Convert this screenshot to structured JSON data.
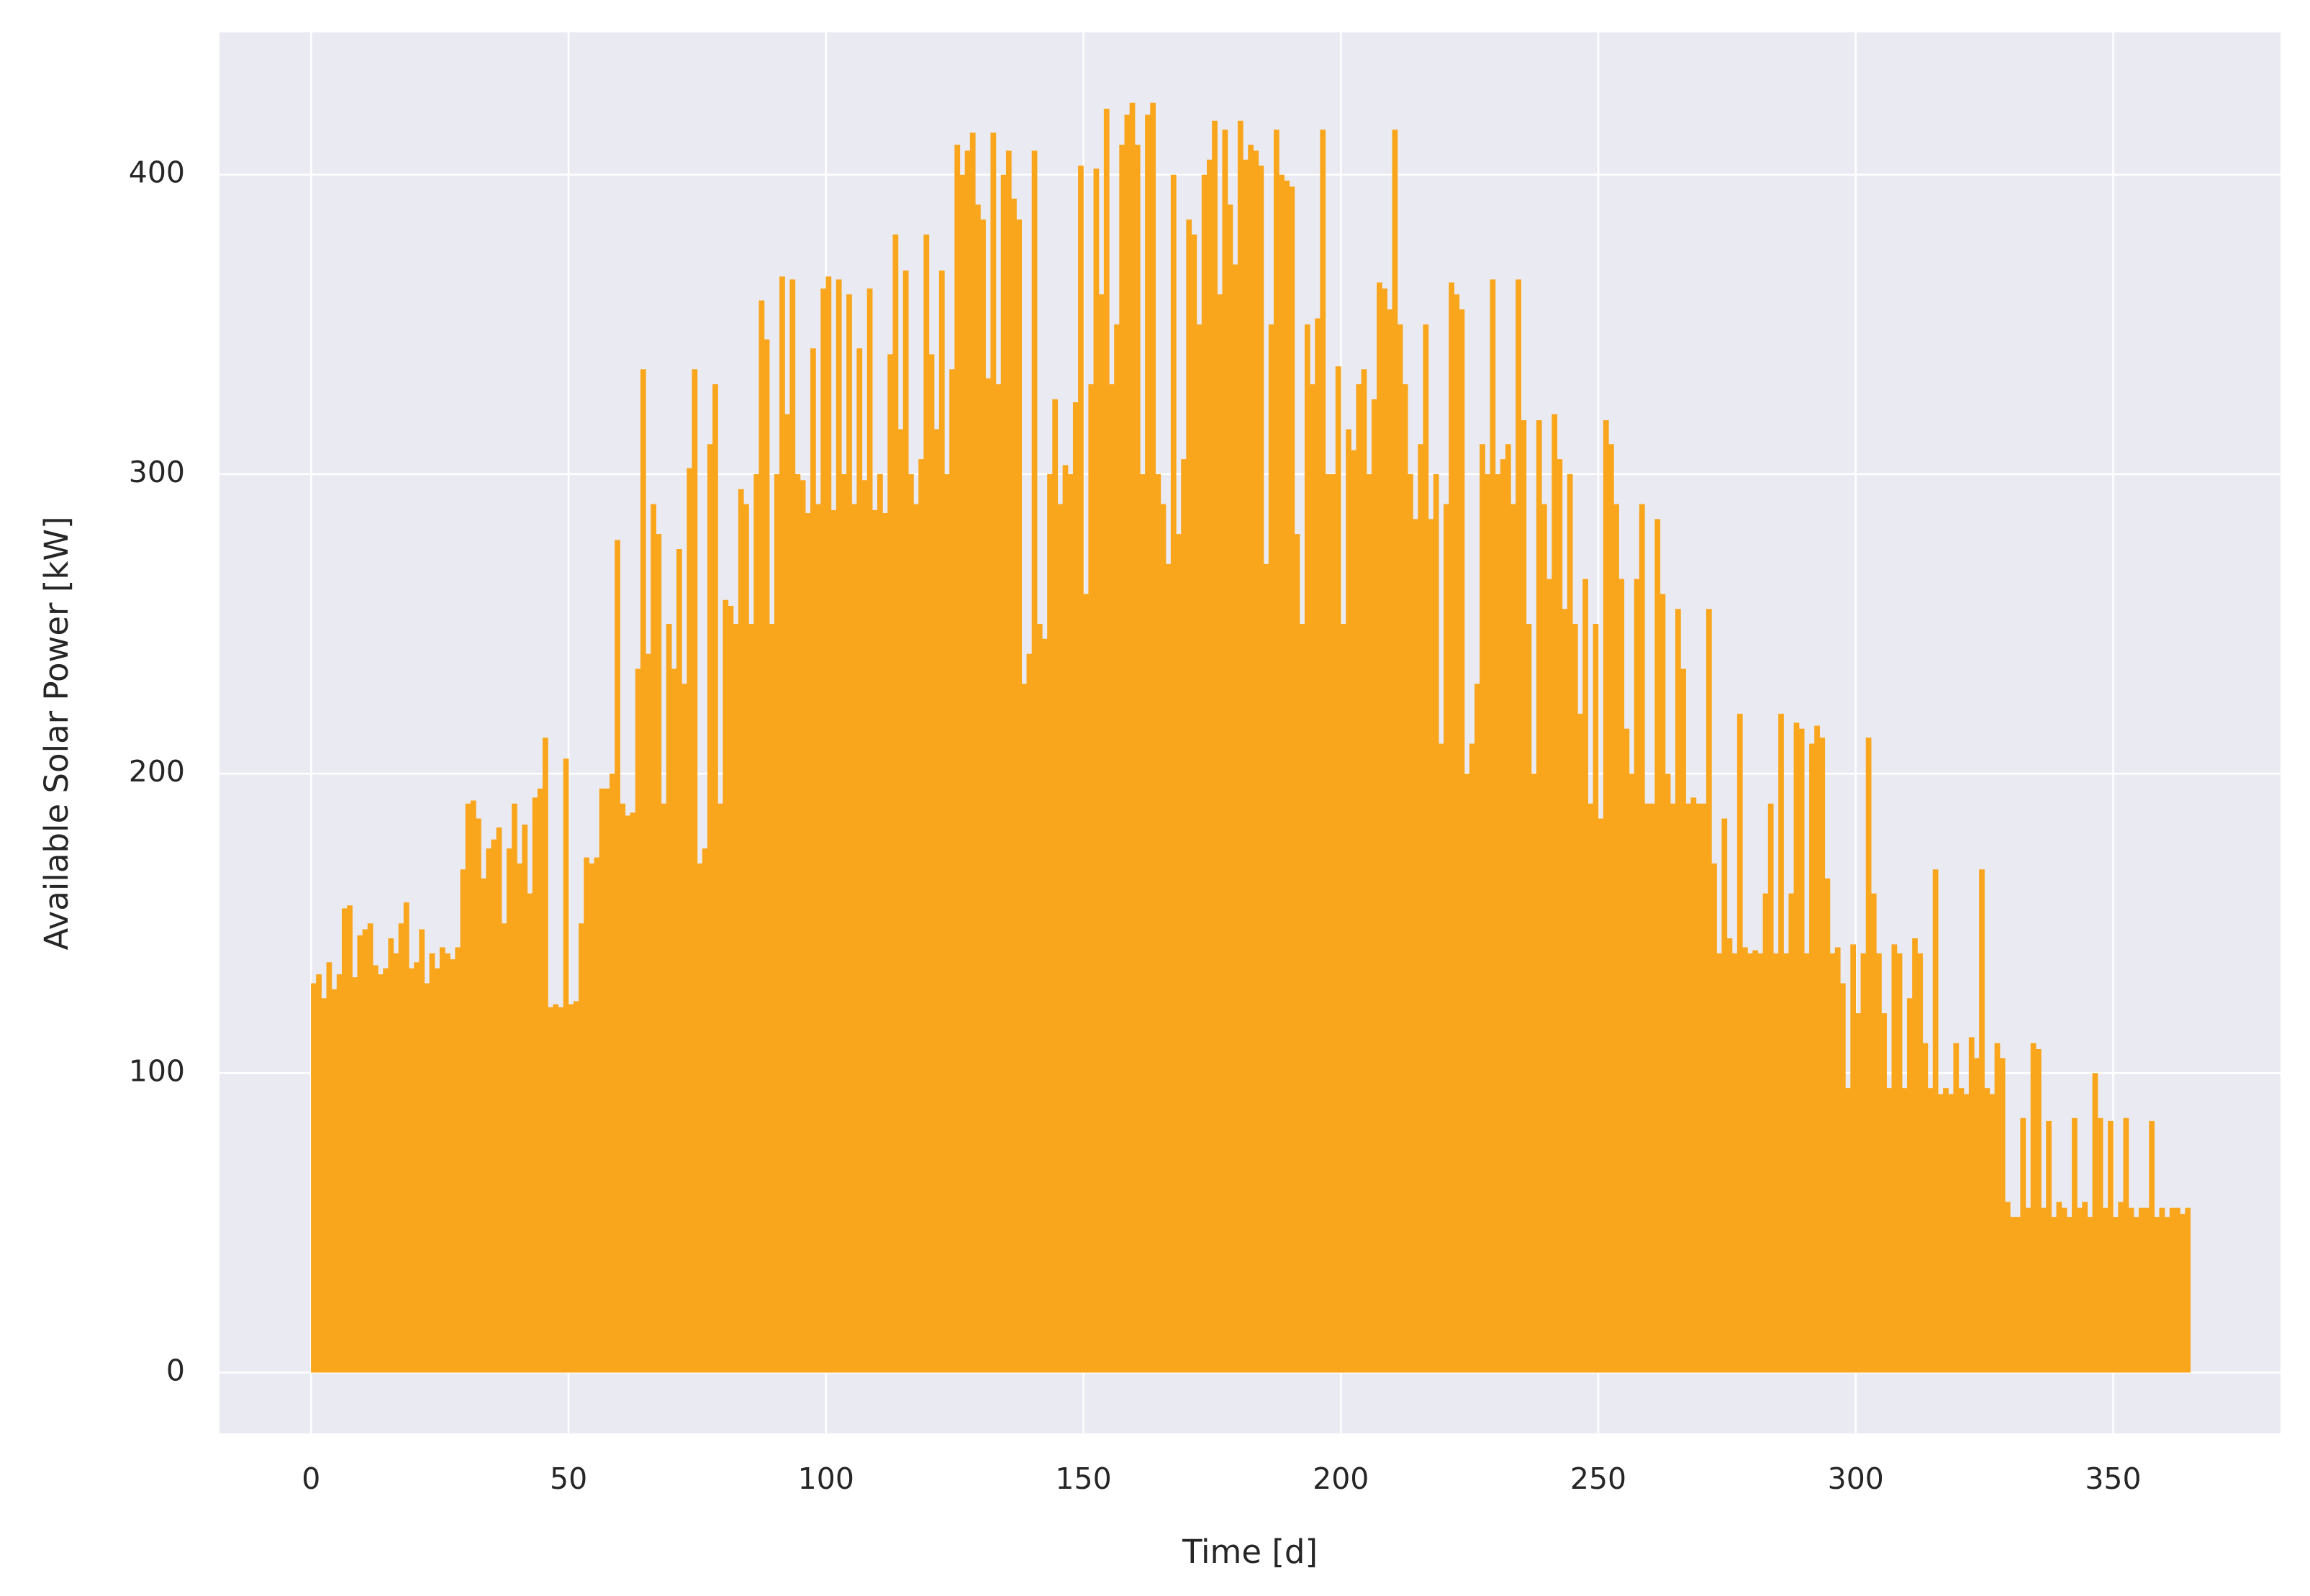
{
  "chart_data": {
    "type": "line",
    "xlabel": "Time [d]",
    "ylabel": "Available Solar Power [kW]",
    "color": "#f9a61d",
    "grid": true,
    "xlim": [
      -17.8,
      382.5
    ],
    "xticks": [
      0,
      50,
      100,
      150,
      200,
      250,
      300,
      350
    ],
    "ylim": [
      -20.3,
      447.5
    ],
    "yticks": [
      0,
      100,
      200,
      300,
      400
    ],
    "x": [
      0,
      1,
      2,
      3,
      4,
      5,
      6,
      7,
      8,
      9,
      10,
      11,
      12,
      13,
      14,
      15,
      16,
      17,
      18,
      19,
      20,
      21,
      22,
      23,
      24,
      25,
      26,
      27,
      28,
      29,
      30,
      31,
      32,
      33,
      34,
      35,
      36,
      37,
      38,
      39,
      40,
      41,
      42,
      43,
      44,
      45,
      46,
      47,
      48,
      49,
      50,
      51,
      52,
      53,
      54,
      55,
      56,
      57,
      58,
      59,
      60,
      61,
      62,
      63,
      64,
      65,
      66,
      67,
      68,
      69,
      70,
      71,
      72,
      73,
      74,
      75,
      76,
      77,
      78,
      79,
      80,
      81,
      82,
      83,
      84,
      85,
      86,
      87,
      88,
      89,
      90,
      91,
      92,
      93,
      94,
      95,
      96,
      97,
      98,
      99,
      100,
      101,
      102,
      103,
      104,
      105,
      106,
      107,
      108,
      109,
      110,
      111,
      112,
      113,
      114,
      115,
      116,
      117,
      118,
      119,
      120,
      121,
      122,
      123,
      124,
      125,
      126,
      127,
      128,
      129,
      130,
      131,
      132,
      133,
      134,
      135,
      136,
      137,
      138,
      139,
      140,
      141,
      142,
      143,
      144,
      145,
      146,
      147,
      148,
      149,
      150,
      151,
      152,
      153,
      154,
      155,
      156,
      157,
      158,
      159,
      160,
      161,
      162,
      163,
      164,
      165,
      166,
      167,
      168,
      169,
      170,
      171,
      172,
      173,
      174,
      175,
      176,
      177,
      178,
      179,
      180,
      181,
      182,
      183,
      184,
      185,
      186,
      187,
      188,
      189,
      190,
      191,
      192,
      193,
      194,
      195,
      196,
      197,
      198,
      199,
      200,
      201,
      202,
      203,
      204,
      205,
      206,
      207,
      208,
      209,
      210,
      211,
      212,
      213,
      214,
      215,
      216,
      217,
      218,
      219,
      220,
      221,
      222,
      223,
      224,
      225,
      226,
      227,
      228,
      229,
      230,
      231,
      232,
      233,
      234,
      235,
      236,
      237,
      238,
      239,
      240,
      241,
      242,
      243,
      244,
      245,
      246,
      247,
      248,
      249,
      250,
      251,
      252,
      253,
      254,
      255,
      256,
      257,
      258,
      259,
      260,
      261,
      262,
      263,
      264,
      265,
      266,
      267,
      268,
      269,
      270,
      271,
      272,
      273,
      274,
      275,
      276,
      277,
      278,
      279,
      280,
      281,
      282,
      283,
      284,
      285,
      286,
      287,
      288,
      289,
      290,
      291,
      292,
      293,
      294,
      295,
      296,
      297,
      298,
      299,
      300,
      301,
      302,
      303,
      304,
      305,
      306,
      307,
      308,
      309,
      310,
      311,
      312,
      313,
      314,
      315,
      316,
      317,
      318,
      319,
      320,
      321,
      322,
      323,
      324,
      325,
      326,
      327,
      328,
      329,
      330,
      331,
      332,
      333,
      334,
      335,
      336,
      337,
      338,
      339,
      340,
      341,
      342,
      343,
      344,
      345,
      346,
      347,
      348,
      349,
      350,
      351,
      352,
      353,
      354,
      355,
      356,
      357,
      358,
      359,
      360,
      361,
      362,
      363,
      364
    ],
    "values": [
      130,
      133,
      125,
      137,
      128,
      133,
      155,
      156,
      132,
      146,
      148,
      150,
      136,
      133,
      135,
      145,
      140,
      150,
      157,
      135,
      137,
      148,
      130,
      140,
      135,
      142,
      140,
      138,
      142,
      168,
      190,
      191,
      185,
      165,
      175,
      178,
      182,
      150,
      175,
      190,
      170,
      183,
      160,
      192,
      195,
      212,
      122,
      123,
      122,
      205,
      123,
      124,
      150,
      172,
      170,
      172,
      195,
      195,
      200,
      278,
      190,
      186,
      187,
      235,
      335,
      240,
      290,
      280,
      190,
      250,
      235,
      275,
      230,
      302,
      335,
      170,
      175,
      310,
      330,
      190,
      258,
      256,
      250,
      295,
      290,
      250,
      300,
      358,
      345,
      250,
      300,
      366,
      320,
      365,
      300,
      298,
      287,
      342,
      290,
      362,
      366,
      288,
      365,
      300,
      360,
      290,
      342,
      298,
      362,
      288,
      300,
      287,
      340,
      380,
      315,
      368,
      300,
      290,
      305,
      380,
      340,
      315,
      368,
      300,
      335,
      410,
      400,
      408,
      414,
      390,
      385,
      332,
      414,
      330,
      400,
      408,
      392,
      385,
      230,
      240,
      408,
      250,
      245,
      300,
      325,
      290,
      303,
      300,
      324,
      403,
      260,
      330,
      402,
      360,
      422,
      330,
      350,
      410,
      420,
      424,
      410,
      300,
      420,
      424,
      300,
      290,
      270,
      400,
      280,
      305,
      385,
      380,
      350,
      400,
      405,
      418,
      360,
      415,
      390,
      370,
      418,
      405,
      410,
      408,
      403,
      270,
      350,
      415,
      400,
      398,
      396,
      280,
      250,
      350,
      330,
      352,
      415,
      300,
      300,
      336,
      250,
      315,
      308,
      330,
      335,
      300,
      325,
      364,
      362,
      355,
      415,
      350,
      330,
      300,
      285,
      310,
      350,
      285,
      300,
      210,
      290,
      364,
      360,
      355,
      200,
      210,
      230,
      310,
      300,
      365,
      300,
      305,
      310,
      290,
      365,
      318,
      250,
      200,
      318,
      290,
      265,
      320,
      305,
      255,
      300,
      250,
      220,
      265,
      190,
      250,
      185,
      318,
      310,
      290,
      265,
      215,
      200,
      265,
      290,
      190,
      190,
      285,
      260,
      200,
      190,
      255,
      235,
      190,
      192,
      190,
      190,
      255,
      170,
      140,
      185,
      145,
      140,
      220,
      142,
      140,
      141,
      140,
      160,
      190,
      140,
      220,
      140,
      160,
      217,
      215,
      140,
      210,
      216,
      212,
      165,
      140,
      142,
      130,
      95,
      143,
      120,
      140,
      212,
      160,
      140,
      120,
      95,
      143,
      140,
      95,
      125,
      145,
      140,
      110,
      95,
      168,
      93,
      95,
      93,
      110,
      95,
      93,
      112,
      105,
      168,
      95,
      93,
      110,
      105,
      57,
      52,
      52,
      85,
      55,
      110,
      108,
      55,
      84,
      52,
      57,
      55,
      52,
      85,
      55,
      57,
      52,
      100,
      85,
      55,
      84,
      52,
      57,
      85,
      55,
      52,
      55,
      55,
      84,
      52,
      55,
      52,
      55,
      55,
      53,
      55
    ]
  }
}
